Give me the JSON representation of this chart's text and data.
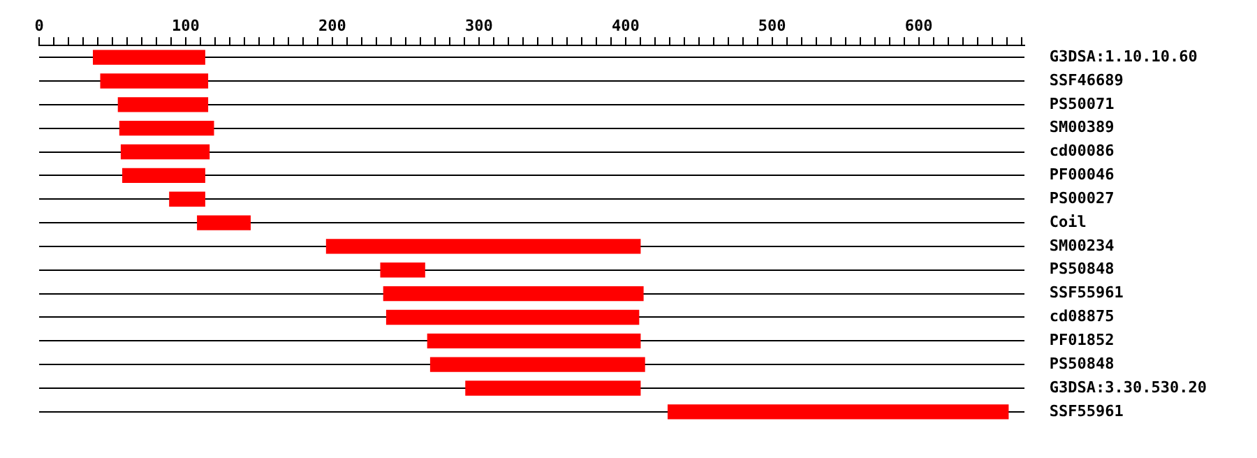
{
  "chart_data": {
    "type": "bar",
    "orientation": "horizontal",
    "categories": [
      "G3DSA:1.10.10.60",
      "SSF46689",
      "PS50071",
      "SM00389",
      "cd00086",
      "PF00046",
      "PS00027",
      "Coil",
      "SM00234",
      "PS50848",
      "SSF55961",
      "cd08875",
      "PF01852",
      "PS50848",
      "G3DSA:3.30.530.20",
      "SSF55961"
    ],
    "base": [
      37,
      42,
      54,
      55,
      56,
      57,
      89,
      108,
      196,
      233,
      235,
      237,
      265,
      267,
      291,
      429
    ],
    "values": [
      76,
      73,
      61,
      64,
      60,
      56,
      24,
      36,
      214,
      30,
      177,
      172,
      145,
      146,
      119,
      232
    ],
    "color": "#ff0000",
    "xlim": [
      0,
      672
    ],
    "xticks": [
      0,
      {
        "value": 10,
        "label": null
      },
      {
        "value": 20,
        "label": null
      },
      {
        "value": 30,
        "label": null
      },
      {
        "value": 40,
        "label": null
      },
      {
        "value": 50,
        "label": null
      },
      {
        "value": 60,
        "label": null
      },
      {
        "value": 70,
        "label": null
      },
      {
        "value": 80,
        "label": null
      },
      {
        "value": 90,
        "label": null
      },
      100,
      {
        "value": 110,
        "label": null
      },
      {
        "value": 120,
        "label": null
      },
      {
        "value": 130,
        "label": null
      },
      {
        "value": 140,
        "label": null
      },
      {
        "value": 150,
        "label": null
      },
      {
        "value": 160,
        "label": null
      },
      {
        "value": 170,
        "label": null
      },
      {
        "value": 180,
        "label": null
      },
      {
        "value": 190,
        "label": null
      },
      200,
      {
        "value": 210,
        "label": null
      },
      {
        "value": 220,
        "label": null
      },
      {
        "value": 230,
        "label": null
      },
      {
        "value": 240,
        "label": null
      },
      {
        "value": 250,
        "label": null
      },
      {
        "value": 260,
        "label": null
      },
      {
        "value": 270,
        "label": null
      },
      {
        "value": 280,
        "label": null
      },
      {
        "value": 290,
        "label": null
      },
      300,
      {
        "value": 310,
        "label": null
      },
      {
        "value": 320,
        "label": null
      },
      {
        "value": 330,
        "label": null
      },
      {
        "value": 340,
        "label": null
      },
      {
        "value": 350,
        "label": null
      },
      {
        "value": 360,
        "label": null
      },
      {
        "value": 370,
        "label": null
      },
      {
        "value": 380,
        "label": null
      },
      {
        "value": 390,
        "label": null
      },
      400,
      {
        "value": 410,
        "label": null
      },
      {
        "value": 420,
        "label": null
      },
      {
        "value": 430,
        "label": null
      },
      {
        "value": 440,
        "label": null
      },
      {
        "value": 450,
        "label": null
      },
      {
        "value": 460,
        "label": null
      },
      {
        "value": 470,
        "label": null
      },
      {
        "value": 480,
        "label": null
      },
      {
        "value": 490,
        "label": null
      },
      500,
      {
        "value": 510,
        "label": null
      },
      {
        "value": 520,
        "label": null
      },
      {
        "value": 530,
        "label": null
      },
      {
        "value": 540,
        "label": null
      },
      {
        "value": 550,
        "label": null
      },
      {
        "value": 560,
        "label": null
      },
      {
        "value": 570,
        "label": null
      },
      {
        "value": 580,
        "label": null
      },
      {
        "value": 590,
        "label": null
      },
      600,
      {
        "value": 610,
        "label": null
      },
      {
        "value": 620,
        "label": null
      },
      {
        "value": 630,
        "label": null
      },
      {
        "value": 640,
        "label": null
      },
      {
        "value": 650,
        "label": null
      },
      {
        "value": 660,
        "label": null
      },
      {
        "value": 670,
        "label": null
      }
    ],
    "grid": "y",
    "legend": false
  }
}
